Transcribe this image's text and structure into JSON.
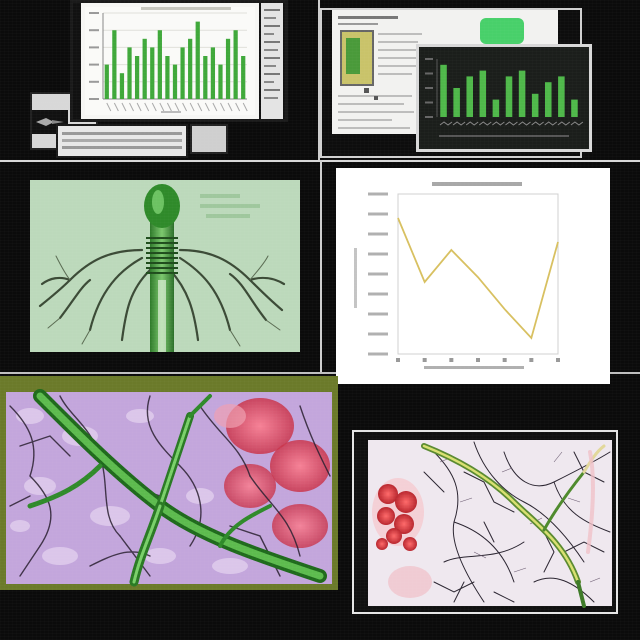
{
  "colors": {
    "background": "#0b0b0b",
    "bar_green": "#3fa83a",
    "line_yellow": "#d8c060",
    "stem_green": "#2f8a2a",
    "tissue_purple": "#b89ad6",
    "cell_red": "#d8485e"
  },
  "panels": {
    "top_left": {
      "kind": "monitor-with-bar-chart"
    },
    "top_right": {
      "kind": "screen-with-bar-chart"
    },
    "middle_left": {
      "kind": "plant-stem-with-roots"
    },
    "middle_right": {
      "kind": "line-chart"
    },
    "bottom_left": {
      "kind": "green-stem-over-purple-tissue"
    },
    "bottom_right": {
      "kind": "vein-network-with-red-cells"
    }
  },
  "chart_data": [
    {
      "type": "bar",
      "values": [
        4,
        8,
        3,
        6,
        5,
        7,
        6,
        8,
        5,
        4,
        6,
        7,
        9,
        5,
        6,
        4,
        7,
        8,
        5
      ],
      "ylim": [
        0,
        10
      ],
      "grid": true
    },
    {
      "type": "bar",
      "values": [
        9,
        5,
        7,
        8,
        3,
        7,
        8,
        4,
        6,
        7,
        3
      ],
      "ylim": [
        0,
        10
      ],
      "grid": false
    },
    {
      "type": "line",
      "x": [
        0,
        1,
        2,
        3,
        4,
        5,
        6
      ],
      "values": [
        85,
        45,
        65,
        48,
        28,
        10,
        70
      ],
      "ylim": [
        0,
        100
      ],
      "grid": false
    }
  ]
}
